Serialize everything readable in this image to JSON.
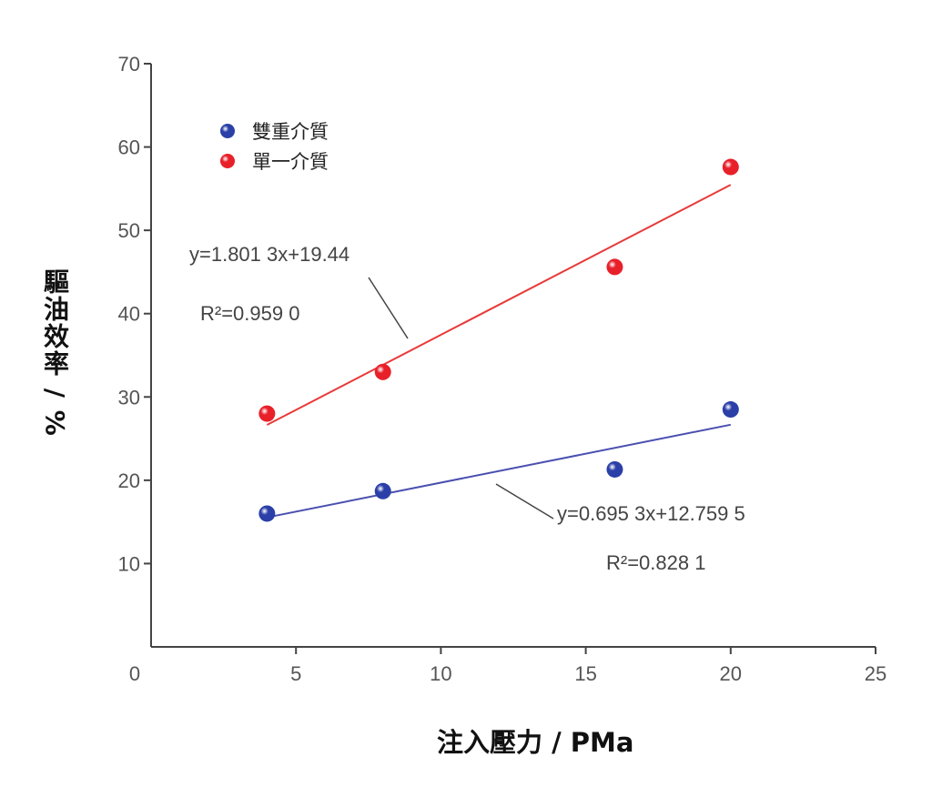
{
  "chart_data": {
    "type": "scatter",
    "xlabel": "注入壓力 / PMa",
    "ylabel": "驅油效率 / %",
    "xlim": [
      0,
      25
    ],
    "ylim": [
      0,
      70
    ],
    "xticks": [
      0,
      5,
      10,
      15,
      20,
      25
    ],
    "yticks": [
      10,
      20,
      30,
      40,
      50,
      60,
      70
    ],
    "legend_position": "top-left",
    "series": [
      {
        "name": "雙重介質",
        "color": "#2b3fa8",
        "line_color": "#4a4fb0",
        "x": [
          4,
          8,
          16,
          20
        ],
        "y": [
          16.0,
          18.7,
          21.3,
          28.5
        ],
        "fit": {
          "slope": 0.6953,
          "intercept": 12.7595,
          "equation": "y=0.695 3x+12.759 5",
          "r2": "R²=0.828 1"
        }
      },
      {
        "name": "單一介質",
        "color": "#e8202a",
        "line_color": "#e83a3a",
        "x": [
          4,
          8,
          16,
          20
        ],
        "y": [
          28.0,
          33.0,
          45.6,
          57.6
        ],
        "fit": {
          "slope": 1.8013,
          "intercept": 19.44,
          "equation": "y=1.801 3x+19.44",
          "r2": "R²=0.959 0"
        }
      }
    ]
  }
}
